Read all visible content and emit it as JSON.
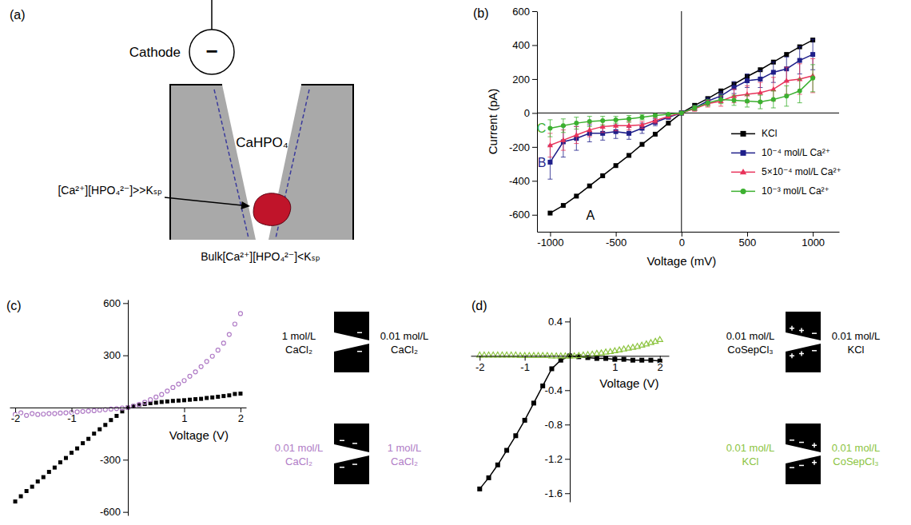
{
  "diagram": {
    "panel_label": "(a)",
    "cathode": "Cathode",
    "cathode_sign": "−",
    "precipitate": "CaHPO₄",
    "local_condition": "[Ca²⁺][HPO₄²⁻]>>Kₛₚ",
    "bulk_condition": "Bulk[Ca²⁺][HPO₄²⁻]<Kₛₚ"
  },
  "chart_data": [
    {
      "panel_label": "(b)",
      "type": "line",
      "x_label": "Voltage (mV)",
      "y_label": "Current (pA)",
      "x": [
        -1000,
        -900,
        -800,
        -700,
        -600,
        -500,
        -400,
        -300,
        -200,
        -100,
        0,
        100,
        200,
        300,
        400,
        500,
        600,
        700,
        800,
        900,
        1000
      ],
      "xlim": [
        -1100,
        1200
      ],
      "ylim": [
        -700,
        600
      ],
      "xticks": [
        -1000,
        -500,
        0,
        500,
        1000
      ],
      "yticks": [
        -600,
        -400,
        -200,
        0,
        200,
        400,
        600
      ],
      "legend": "right",
      "series": [
        {
          "name": "KCl",
          "label": "A",
          "color": "#000000",
          "marker": "square",
          "values": [
            -590,
            -545,
            -490,
            -430,
            -370,
            -310,
            -250,
            -185,
            -125,
            -60,
            0,
            45,
            85,
            130,
            170,
            215,
            255,
            300,
            345,
            390,
            430
          ]
        },
        {
          "name": "10⁻⁴ mol/L Ca²⁺",
          "label": "B",
          "color": "#1f1f8a",
          "marker": "square",
          "values": [
            -290,
            -170,
            -150,
            -120,
            -120,
            -110,
            -120,
            -90,
            -55,
            -25,
            0,
            30,
            70,
            100,
            150,
            190,
            200,
            240,
            260,
            310,
            345
          ],
          "errors": [
            100,
            90,
            70,
            50,
            40,
            40,
            35,
            30,
            20,
            10,
            0,
            15,
            20,
            25,
            35,
            40,
            50,
            60,
            70,
            80,
            90
          ]
        },
        {
          "name": "5×10⁻⁴ mol/L Ca²⁺",
          "color": "#e8335a",
          "marker": "triangle",
          "values": [
            -190,
            -160,
            -130,
            -100,
            -80,
            -75,
            -75,
            -70,
            -45,
            -20,
            0,
            25,
            55,
            70,
            100,
            110,
            120,
            140,
            190,
            200,
            220
          ],
          "errors": [
            70,
            60,
            50,
            40,
            35,
            30,
            25,
            20,
            15,
            10,
            0,
            15,
            20,
            30,
            40,
            50,
            60,
            70,
            80,
            90,
            100
          ]
        },
        {
          "name": "10⁻³ mol/L Ca²⁺",
          "label": "C",
          "color": "#3cb030",
          "marker": "circle",
          "values": [
            -90,
            -75,
            -60,
            -50,
            -45,
            -40,
            -35,
            -25,
            -15,
            -8,
            0,
            30,
            60,
            80,
            75,
            70,
            65,
            80,
            100,
            130,
            205
          ],
          "errors": [
            50,
            40,
            35,
            30,
            25,
            20,
            20,
            15,
            10,
            5,
            0,
            15,
            20,
            25,
            30,
            35,
            40,
            50,
            60,
            70,
            80
          ]
        }
      ]
    },
    {
      "panel_label": "(c)",
      "type": "scatter",
      "x_label": "Voltage (V)",
      "x": [
        -2,
        -1.9,
        -1.8,
        -1.7,
        -1.6,
        -1.5,
        -1.4,
        -1.3,
        -1.2,
        -1.1,
        -1,
        -0.9,
        -0.8,
        -0.7,
        -0.6,
        -0.5,
        -0.4,
        -0.3,
        -0.2,
        -0.1,
        0,
        0.1,
        0.2,
        0.3,
        0.4,
        0.5,
        0.6,
        0.7,
        0.8,
        0.9,
        1,
        1.1,
        1.2,
        1.3,
        1.4,
        1.5,
        1.6,
        1.7,
        1.8,
        1.9,
        2
      ],
      "xlim": [
        -2.1,
        2.1
      ],
      "ylim": [
        -620,
        620
      ],
      "xticks": [
        -2,
        -1,
        1,
        2
      ],
      "yticks": [
        -600,
        -300,
        300,
        600
      ],
      "series": [
        {
          "color": "#000000",
          "marker": "square",
          "values": [
            -540,
            -510,
            -480,
            -455,
            -425,
            -400,
            -370,
            -345,
            -315,
            -290,
            -260,
            -235,
            -205,
            -180,
            -150,
            -125,
            -100,
            -72,
            -48,
            -22,
            0,
            8,
            15,
            20,
            25,
            28,
            32,
            35,
            38,
            40,
            42,
            45,
            48,
            50,
            55,
            58,
            62,
            66,
            70,
            78,
            80
          ]
        },
        {
          "color": "#b07cc6",
          "marker": "circle_open",
          "values": [
            -40,
            -30,
            -45,
            -35,
            -40,
            -38,
            -35,
            -35,
            -32,
            -30,
            -28,
            -25,
            -22,
            -20,
            -18,
            -15,
            -12,
            -9,
            -6,
            -3,
            0,
            8,
            18,
            30,
            45,
            60,
            75,
            95,
            115,
            135,
            155,
            180,
            205,
            235,
            265,
            295,
            330,
            370,
            420,
            480,
            540
          ]
        }
      ],
      "schematics": [
        {
          "left": "1 mol/L CaCl₂",
          "right": "0.01 mol/L CaCl₂",
          "color": "#000000"
        },
        {
          "left": "0.01 mol/L CaCl₂",
          "right": "1 mol/L CaCl₂",
          "color": "#b07cc6"
        }
      ]
    },
    {
      "panel_label": "(d)",
      "type": "scatter",
      "x_label": "Voltage (V)",
      "xlim": [
        -2.2,
        2.2
      ],
      "ylim": [
        -1.7,
        0.45
      ],
      "xticks": [
        -2,
        -1,
        1,
        2
      ],
      "yticks": [
        -1.6,
        -1.2,
        -0.8,
        -0.4,
        0.4
      ],
      "series": [
        {
          "type": "line",
          "color": "#000000",
          "marker": "square",
          "x": [
            -2,
            -1.8,
            -1.6,
            -1.4,
            -1.2,
            -1,
            -0.8,
            -0.6,
            -0.4,
            -0.2,
            0,
            0.2,
            0.4,
            0.6,
            0.8,
            1,
            1.2,
            1.4,
            1.6,
            1.8,
            2
          ],
          "values": [
            -1.55,
            -1.42,
            -1.27,
            -1.1,
            -0.93,
            -0.75,
            -0.55,
            -0.35,
            -0.15,
            -0.05,
            0,
            -0.01,
            -0.02,
            -0.03,
            -0.03,
            -0.04,
            -0.04,
            -0.05,
            -0.05,
            -0.05,
            -0.06
          ]
        },
        {
          "color": "#8cc43f",
          "marker": "triangle_open",
          "x": [
            -2,
            -1.9,
            -1.8,
            -1.7,
            -1.6,
            -1.5,
            -1.4,
            -1.3,
            -1.2,
            -1.1,
            -1,
            -0.9,
            -0.8,
            -0.7,
            -0.6,
            -0.5,
            -0.4,
            -0.3,
            -0.2,
            -0.1,
            0,
            0.1,
            0.2,
            0.3,
            0.4,
            0.5,
            0.6,
            0.7,
            0.8,
            0.9,
            1,
            1.1,
            1.2,
            1.3,
            1.4,
            1.5,
            1.6,
            1.7,
            1.8,
            1.9,
            2
          ],
          "values": [
            0.01,
            0.01,
            0.01,
            0.01,
            0.01,
            0.01,
            0.01,
            0.01,
            0.01,
            0.005,
            0.005,
            0.005,
            0.005,
            0.005,
            0.005,
            0.005,
            0,
            0,
            0,
            0,
            0,
            0,
            0.005,
            0.01,
            0.015,
            0.02,
            0.03,
            0.035,
            0.045,
            0.05,
            0.06,
            0.07,
            0.08,
            0.09,
            0.1,
            0.11,
            0.125,
            0.14,
            0.155,
            0.17,
            0.19
          ]
        }
      ],
      "schematics": [
        {
          "left": "0.01 mol/L CoSepCl₃",
          "right": "0.01 mol/L KCl",
          "color": "#000000"
        },
        {
          "left": "0.01 mol/L KCl",
          "right": "0.01 mol/L CoSepCl₃",
          "color": "#8cc43f"
        }
      ]
    }
  ]
}
